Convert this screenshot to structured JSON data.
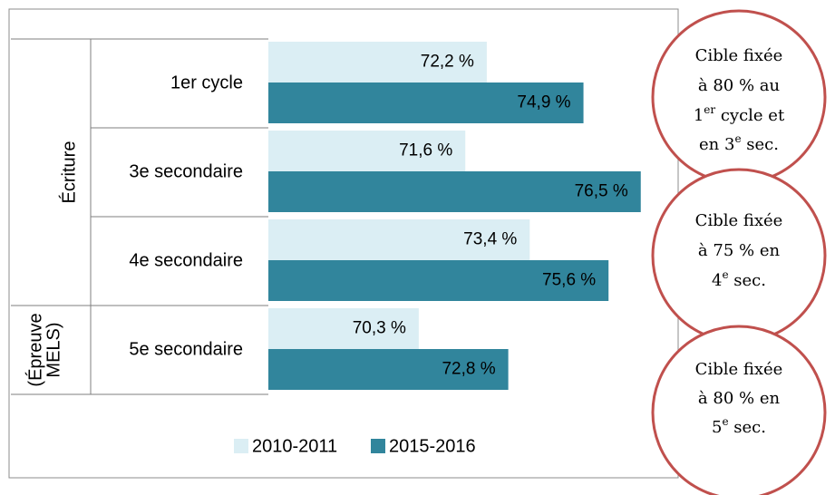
{
  "chart_data": {
    "type": "bar",
    "orientation": "horizontal",
    "categories": [
      "1er cycle",
      "3e secondaire",
      "4e secondaire",
      "5e secondaire"
    ],
    "groups": [
      {
        "lines": [
          "Écriture"
        ]
      },
      {
        "lines": [
          "(Épreuve",
          "MELS)"
        ]
      }
    ],
    "series": [
      {
        "name": "2010-2011",
        "color": "#dbeef4",
        "values": [
          72.2,
          71.6,
          73.4,
          70.3
        ],
        "value_labels": [
          "72,2 %",
          "71,6 %",
          "73,4 %",
          "70,3 %"
        ]
      },
      {
        "name": "2015-2016",
        "color": "#31859c",
        "values": [
          74.9,
          76.5,
          75.6,
          72.8
        ],
        "value_labels": [
          "74,9 %",
          "76,5 %",
          "75,6 %",
          "72,8 %"
        ]
      }
    ],
    "xlim": [
      66.1,
      78
    ],
    "annotations": [
      {
        "lines": [
          [
            {
              "t": "Cible fixée"
            }
          ],
          [
            {
              "t": "à 80 % au"
            }
          ],
          [
            {
              "t": "1"
            },
            {
              "sup": "er"
            },
            {
              "t": " cycle et"
            }
          ],
          [
            {
              "t": "en 3"
            },
            {
              "sup": "e"
            },
            {
              "t": " sec."
            }
          ]
        ]
      },
      {
        "lines": [
          [
            {
              "t": "Cible fixée"
            }
          ],
          [
            {
              "t": "à 75 % en"
            }
          ],
          [
            {
              "t": "4"
            },
            {
              "sup": "e"
            },
            {
              "t": " sec."
            }
          ]
        ]
      },
      {
        "lines": [
          [
            {
              "t": "Cible fixée"
            }
          ],
          [
            {
              "t": "à 80 % en"
            }
          ],
          [
            {
              "t": "5"
            },
            {
              "sup": "e"
            },
            {
              "t": " sec."
            }
          ]
        ]
      }
    ],
    "annotation_color": "#c0504d"
  }
}
